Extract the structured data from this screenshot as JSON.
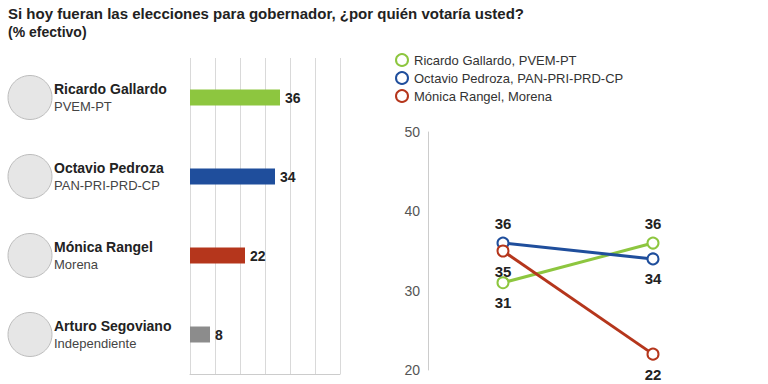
{
  "chart_data": [
    {
      "type": "bar",
      "title": "Si hoy fueran las elecciones para gobernador, ¿por quién votaría usted?",
      "subtitle": "(% efectivo)",
      "orientation": "horizontal",
      "categories": [
        "Ricardo Gallardo",
        "Octavio Pedroza",
        "Mónica Rangel",
        "Arturo Segoviano"
      ],
      "parties": [
        "PVEM-PT",
        "PAN-PRI-PRD-CP",
        "Morena",
        "Independiente"
      ],
      "values": [
        36,
        34,
        22,
        8
      ],
      "colors": [
        "#8dc63f",
        "#1f4e9c",
        "#b5361c",
        "#8c8c8c"
      ],
      "xlim": [
        0,
        60
      ],
      "xticks": [
        0,
        10,
        20,
        30,
        40,
        50,
        60
      ],
      "grid": true,
      "tick_labels": "y",
      "data_labels": true
    },
    {
      "type": "line",
      "categories": [
        null,
        null
      ],
      "series": [
        {
          "name": "Ricardo Gallardo, PVEM-PT",
          "color": "#8dc63f",
          "values": [
            31,
            36
          ]
        },
        {
          "name": "Octavio Pedroza, PAN-PRI-PRD-CP",
          "color": "#1f4e9c",
          "values": [
            36,
            34
          ]
        },
        {
          "name": "Mónica Rangel, Morena",
          "color": "#b5361c",
          "values": [
            35,
            22
          ]
        }
      ],
      "ylim": [
        20,
        50
      ],
      "yticks": [
        20,
        30,
        40,
        50
      ],
      "grid": false,
      "legend": "top-left",
      "marker": "emptyCircle",
      "data_labels": true
    }
  ]
}
